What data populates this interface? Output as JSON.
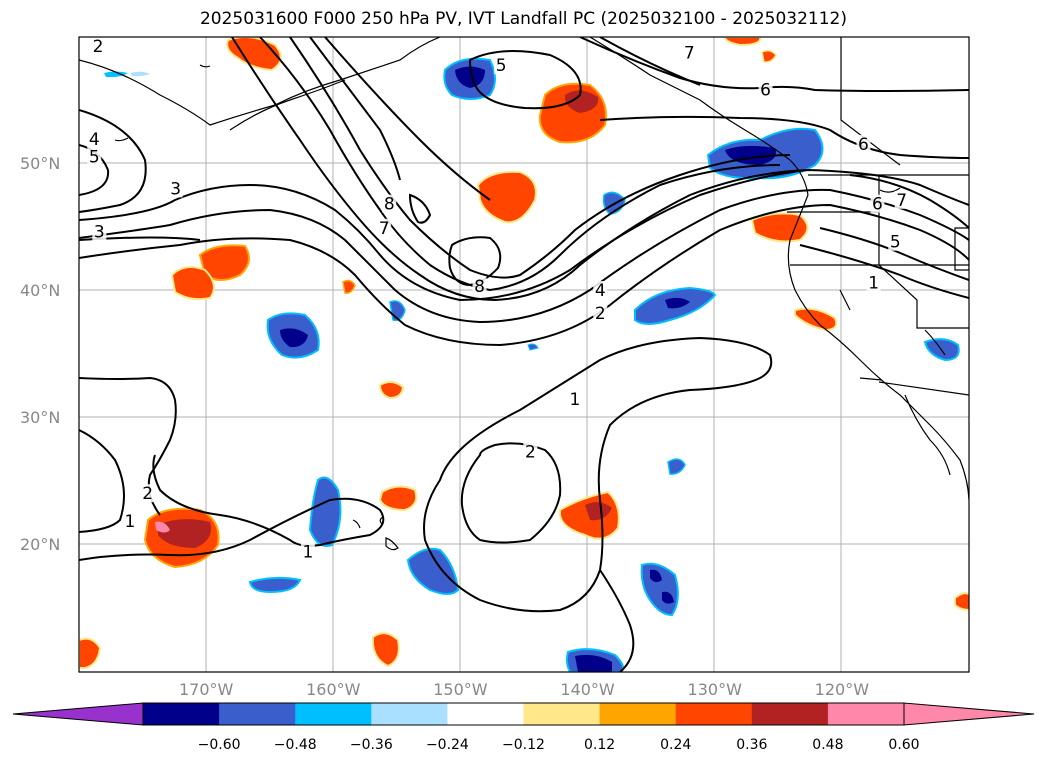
{
  "title": "2025031600 F000 250 hPa PV, IVT Landfall PC (2025032100 - 2025032112)",
  "map": {
    "lon_range": [
      -180,
      -110
    ],
    "lat_range": [
      10,
      60
    ],
    "lat_labels": [
      {
        "lat": 50,
        "text": "50°N"
      },
      {
        "lat": 40,
        "text": "40°N"
      },
      {
        "lat": 30,
        "text": "30°N"
      },
      {
        "lat": 20,
        "text": "20°N"
      }
    ],
    "lon_labels": [
      {
        "lon": -170,
        "text": "170°W"
      },
      {
        "lon": -160,
        "text": "160°W"
      },
      {
        "lon": -150,
        "text": "150°W"
      },
      {
        "lon": -140,
        "text": "140°W"
      },
      {
        "lon": -130,
        "text": "130°W"
      },
      {
        "lon": -120,
        "text": "120°W"
      }
    ],
    "contour_labels": [
      {
        "text": "2",
        "lon": -178.5,
        "lat": 59.2
      },
      {
        "text": "5",
        "lon": -146.8,
        "lat": 57.7
      },
      {
        "text": "7",
        "lon": -132.0,
        "lat": 58.7
      },
      {
        "text": "6",
        "lon": -126.0,
        "lat": 55.8
      },
      {
        "text": "6",
        "lon": -118.3,
        "lat": 51.5
      },
      {
        "text": "4",
        "lon": -178.8,
        "lat": 51.9
      },
      {
        "text": "5",
        "lon": -178.8,
        "lat": 50.5
      },
      {
        "text": "3",
        "lon": -172.4,
        "lat": 48.0
      },
      {
        "text": "3",
        "lon": -178.4,
        "lat": 44.6
      },
      {
        "text": "8",
        "lon": -155.6,
        "lat": 46.8
      },
      {
        "text": "7",
        "lon": -156.0,
        "lat": 44.9
      },
      {
        "text": "8",
        "lon": -148.5,
        "lat": 40.3
      },
      {
        "text": "4",
        "lon": -139.0,
        "lat": 40.0
      },
      {
        "text": "2",
        "lon": -139.0,
        "lat": 38.2
      },
      {
        "text": "6",
        "lon": -117.2,
        "lat": 46.8
      },
      {
        "text": "7",
        "lon": -115.3,
        "lat": 47.1
      },
      {
        "text": "5",
        "lon": -115.8,
        "lat": 43.8
      },
      {
        "text": "1",
        "lon": -117.5,
        "lat": 40.6
      },
      {
        "text": "1",
        "lon": -141.0,
        "lat": 31.4
      },
      {
        "text": "2",
        "lon": -144.5,
        "lat": 27.3
      },
      {
        "text": "2",
        "lon": -174.6,
        "lat": 24.0
      },
      {
        "text": "1",
        "lon": -176.0,
        "lat": 21.8
      },
      {
        "text": "1",
        "lon": -162.0,
        "lat": 19.4
      }
    ]
  },
  "colorbar": {
    "ticks": [
      "−0.60",
      "−0.48",
      "−0.36",
      "−0.24",
      "−0.12",
      "0.12",
      "0.24",
      "0.36",
      "0.48",
      "0.60"
    ],
    "under_color": "#9932cc",
    "over_color": "#ff88aa",
    "colors": [
      "#00008b",
      "#3a5fcd",
      "#00bfff",
      "#aae0ff",
      "#ffffff",
      "#ffe88a",
      "#ffa500",
      "#ff4500",
      "#b22222",
      "#ff88aa"
    ]
  }
}
